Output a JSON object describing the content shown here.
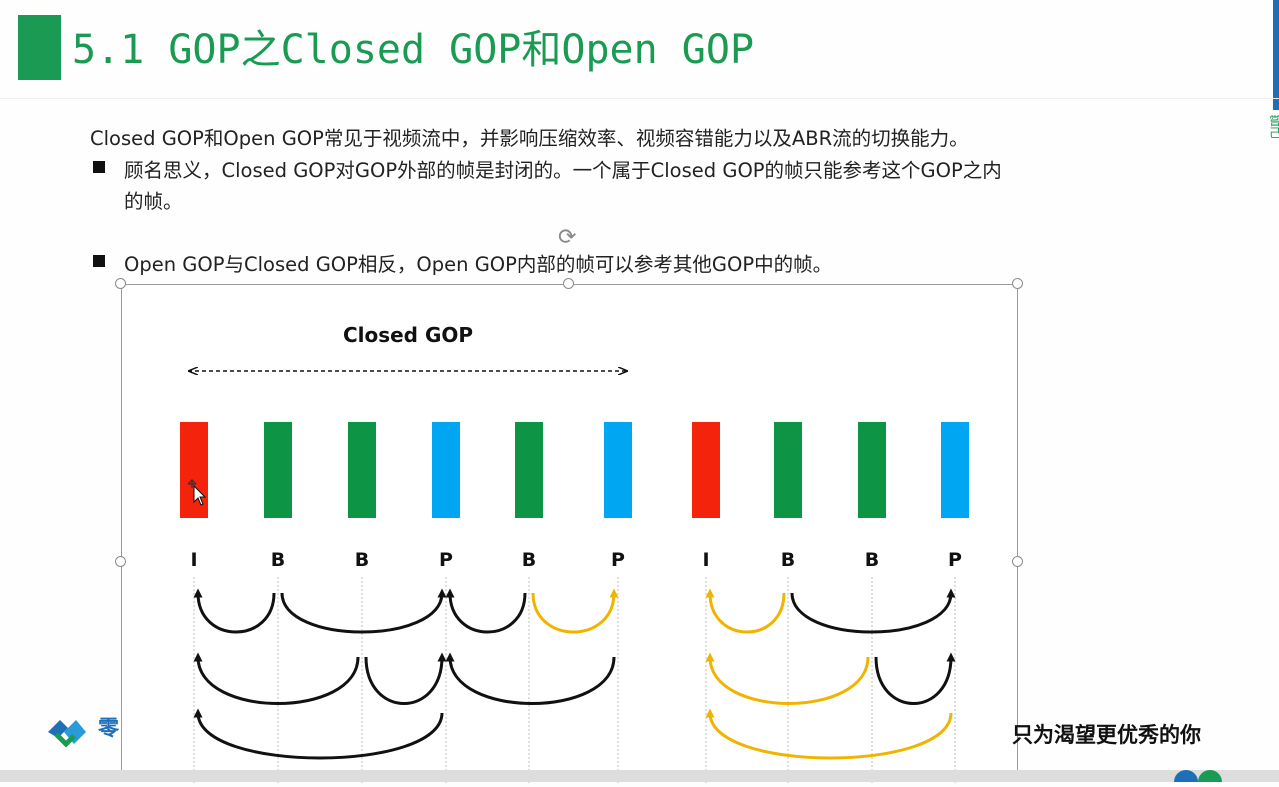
{
  "slide": {
    "title": "5.1 GOP之Closed GOP和Open GOP",
    "intro": "Closed GOP和Open GOP常见于视频流中，并影响压缩效率、视频容错能力以及ABR流的切换能力。",
    "bullet1_line1": "顾名思义，Closed GOP对GOP外部的帧是封闭的。一个属于Closed GOP的帧只能参考这个GOP之内",
    "bullet1_line2": "的帧。",
    "bullet2": "Open GOP与Closed GOP相反，Open GOP内部的帧可以参考其他GOP中的帧。"
  },
  "diagram": {
    "label": "Closed GOP",
    "frames": [
      {
        "type": "I",
        "color": "#f3230c"
      },
      {
        "type": "B",
        "color": "#0d9445"
      },
      {
        "type": "B",
        "color": "#0d9445"
      },
      {
        "type": "P",
        "color": "#00a6f2"
      },
      {
        "type": "B",
        "color": "#0d9445"
      },
      {
        "type": "P",
        "color": "#00a6f2"
      },
      {
        "type": "I",
        "color": "#f3230c"
      },
      {
        "type": "B",
        "color": "#0d9445"
      },
      {
        "type": "B",
        "color": "#0d9445"
      },
      {
        "type": "P",
        "color": "#00a6f2"
      }
    ],
    "arrow_colors": {
      "black": "#111111",
      "gold": "#f0b400"
    },
    "references": [
      {
        "from": 1,
        "to": 0,
        "color": "black"
      },
      {
        "from": 1,
        "to": 3,
        "color": "black"
      },
      {
        "from": 4,
        "to": 3,
        "color": "black"
      },
      {
        "from": 4,
        "to": 5,
        "color": "gold"
      },
      {
        "from": 2,
        "to": 0,
        "color": "black"
      },
      {
        "from": 2,
        "to": 3,
        "color": "black"
      },
      {
        "from": 5,
        "to": 3,
        "color": "black"
      },
      {
        "from": 3,
        "to": 0,
        "color": "black"
      },
      {
        "from": 7,
        "to": 6,
        "color": "gold"
      },
      {
        "from": 7,
        "to": 9,
        "color": "black"
      },
      {
        "from": 8,
        "to": 6,
        "color": "gold"
      },
      {
        "from": 8,
        "to": 9,
        "color": "black"
      },
      {
        "from": 9,
        "to": 6,
        "color": "gold"
      }
    ]
  },
  "footer": {
    "company": "零",
    "slogan": "只为渴望更优秀的你"
  },
  "colors": {
    "accent": "#1a9a52",
    "brand_blue": "#1e6fb8"
  }
}
